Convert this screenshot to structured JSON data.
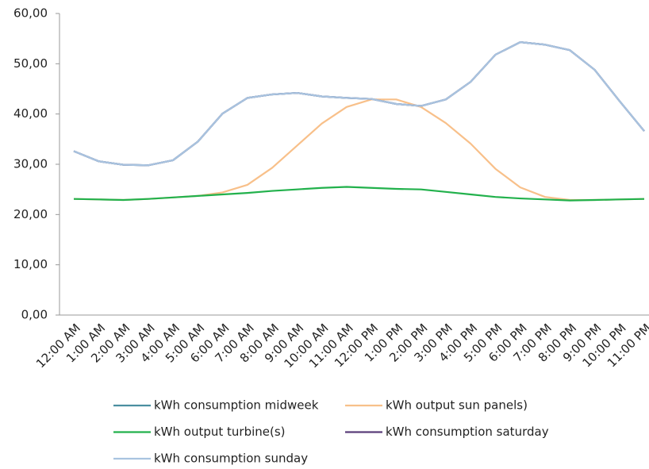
{
  "chart_data": {
    "type": "line",
    "categories": [
      "12:00 AM",
      "1:00 AM",
      "2:00 AM",
      "3:00 AM",
      "4:00 AM",
      "5:00 AM",
      "6:00 AM",
      "7:00 AM",
      "8:00 AM",
      "9:00 AM",
      "10:00 AM",
      "11:00 AM",
      "12:00 PM",
      "1:00 PM",
      "2:00 PM",
      "3:00 PM",
      "4:00 PM",
      "5:00 PM",
      "6:00 PM",
      "7:00 PM",
      "8:00 PM",
      "9:00 PM",
      "10:00 PM",
      "11:00 PM"
    ],
    "series": [
      {
        "name": "kWh consumption midweek",
        "color": "#4a8fa0",
        "values": [
          32.6,
          30.6,
          29.9,
          29.8,
          30.8,
          34.5,
          40.1,
          43.2,
          43.9,
          44.2,
          43.5,
          43.2,
          43.0,
          42.0,
          41.6,
          42.9,
          46.4,
          51.8,
          54.3,
          53.8,
          52.7,
          48.8,
          42.6,
          36.6
        ]
      },
      {
        "name": "kWh output sun panels)",
        "color": "#f8c08a",
        "values": [
          23.1,
          23.0,
          22.9,
          23.1,
          23.4,
          23.7,
          24.4,
          25.9,
          29.3,
          33.7,
          38.1,
          41.4,
          42.9,
          42.9,
          41.4,
          38.2,
          34.1,
          29.1,
          25.4,
          23.5,
          22.9,
          22.9,
          23.0,
          23.1
        ]
      },
      {
        "name": "kWh output turbine(s)",
        "color": "#22b14c",
        "values": [
          23.1,
          23.0,
          22.9,
          23.1,
          23.4,
          23.7,
          24.0,
          24.3,
          24.7,
          25.0,
          25.3,
          25.5,
          25.3,
          25.1,
          25.0,
          24.5,
          24.0,
          23.5,
          23.2,
          23.0,
          22.8,
          22.9,
          23.0,
          23.1
        ]
      },
      {
        "name": "kWh consumption saturday",
        "color": "#5b3f7a",
        "values": [
          32.6,
          30.6,
          29.9,
          29.8,
          30.8,
          34.5,
          40.1,
          43.2,
          43.9,
          44.2,
          43.5,
          43.2,
          43.0,
          42.0,
          41.6,
          42.9,
          46.4,
          51.8,
          54.3,
          53.8,
          52.7,
          48.8,
          42.6,
          36.6
        ]
      },
      {
        "name": "kWh consumption sunday",
        "color": "#a9c4e0",
        "values": [
          32.6,
          30.6,
          29.9,
          29.8,
          30.8,
          34.5,
          40.1,
          43.2,
          43.9,
          44.2,
          43.5,
          43.2,
          43.0,
          42.0,
          41.6,
          42.9,
          46.4,
          51.8,
          54.3,
          53.8,
          52.7,
          48.8,
          42.6,
          36.6
        ]
      }
    ],
    "ylim": [
      0,
      60
    ],
    "yticks": [
      {
        "value": 0,
        "label": "0,00"
      },
      {
        "value": 10,
        "label": "10,00"
      },
      {
        "value": 20,
        "label": "20,00"
      },
      {
        "value": 30,
        "label": "30,00"
      },
      {
        "value": 40,
        "label": "40,00"
      },
      {
        "value": 50,
        "label": "50,00"
      },
      {
        "value": 60,
        "label": "60,00"
      }
    ],
    "legend": "bottom"
  }
}
